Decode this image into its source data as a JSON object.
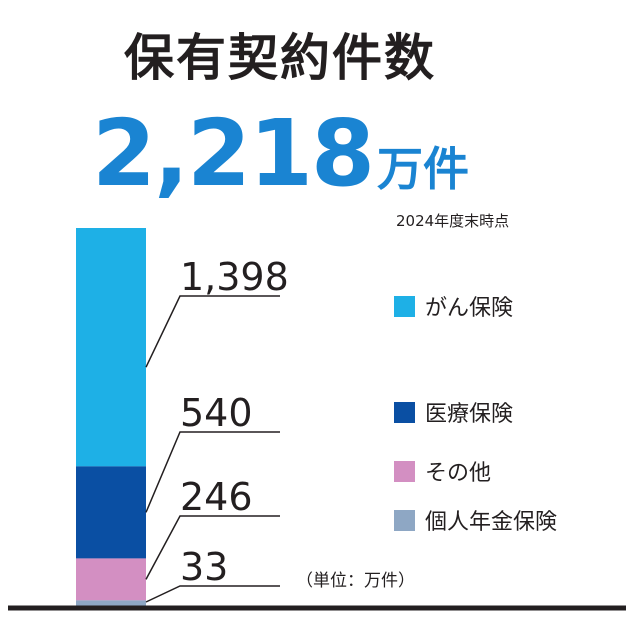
{
  "header": {
    "title": "保有契約件数",
    "total_value": "2,218",
    "total_unit": "万件",
    "as_of": "2024年度末時点"
  },
  "unit_note": "（単位：万件）",
  "colors": {
    "cancer": "#1eb0e6",
    "medical": "#0a4fa3",
    "other": "#d38fc2",
    "annuity": "#8ea7c4",
    "total": "#1a84d2"
  },
  "chart_data": {
    "type": "bar",
    "stacked": true,
    "title": "保有契約件数",
    "unit": "万件",
    "total": 2218,
    "categories": [
      "2024年度末時点"
    ],
    "series": [
      {
        "name": "がん保険",
        "values": [
          1398
        ],
        "label": "1,398",
        "color": "#1eb0e6"
      },
      {
        "name": "医療保険",
        "values": [
          540
        ],
        "label": "540",
        "color": "#0a4fa3"
      },
      {
        "name": "その他",
        "values": [
          246
        ],
        "label": "246",
        "color": "#d38fc2"
      },
      {
        "name": "個人年金保険",
        "values": [
          33
        ],
        "label": "33",
        "color": "#8ea7c4"
      }
    ],
    "legend_position": "right",
    "grid": false
  }
}
